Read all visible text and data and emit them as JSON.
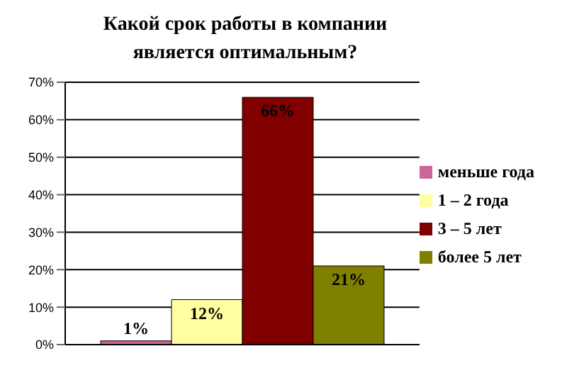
{
  "chart_data": {
    "type": "bar",
    "title": "Какой срок работы в компании является оптимальным?",
    "categories": [
      null
    ],
    "series": [
      {
        "name": "меньше года",
        "color": "#cc6699",
        "values": [
          1
        ],
        "value_labels": [
          "1%"
        ]
      },
      {
        "name": "1 – 2 года",
        "color": "#ffffa0",
        "values": [
          12
        ],
        "value_labels": [
          "12%"
        ]
      },
      {
        "name": "3 – 5 лет",
        "color": "#800000",
        "values": [
          66
        ],
        "value_labels": [
          "66%"
        ]
      },
      {
        "name": "более 5 лет",
        "color": "#808000",
        "values": [
          21
        ],
        "value_labels": [
          "21%"
        ]
      }
    ],
    "ylim": [
      0,
      70
    ],
    "yticks": [
      {
        "value": 0,
        "label": "0%"
      },
      {
        "value": 10,
        "label": "10%"
      },
      {
        "value": 20,
        "label": "20%"
      },
      {
        "value": 30,
        "label": "30%"
      },
      {
        "value": 40,
        "label": "40%"
      },
      {
        "value": 50,
        "label": "50%"
      },
      {
        "value": 60,
        "label": "60%"
      },
      {
        "value": 70,
        "label": "70%"
      }
    ],
    "grid": "y",
    "legend": "right"
  }
}
